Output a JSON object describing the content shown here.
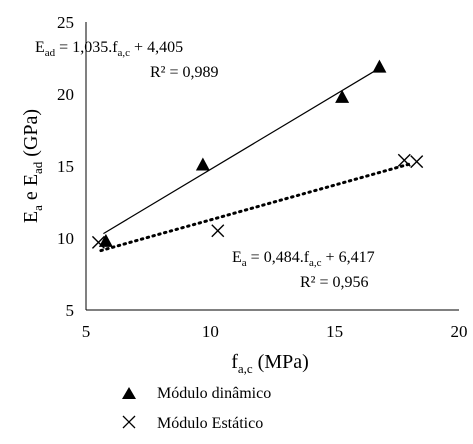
{
  "chart_data": {
    "type": "scatter",
    "xlabel": {
      "base": "f",
      "sub": "a,c",
      "rest": " (MPa)"
    },
    "ylabel": {
      "p1": "E",
      "s1": "a",
      "mid": " e E",
      "s2": "ad",
      "rest": " (GPa)"
    },
    "xlim": [
      5,
      20
    ],
    "ylim": [
      5,
      25
    ],
    "xticks": [
      "5",
      "10",
      "15",
      "20"
    ],
    "yticks": [
      "5",
      "10",
      "15",
      "20",
      "25"
    ],
    "grid": false,
    "series": [
      {
        "name": "Módulo dinâmico",
        "marker": "triangle",
        "points": [
          [
            5.8,
            9.8
          ],
          [
            9.7,
            15.1
          ],
          [
            15.3,
            19.8
          ],
          [
            16.8,
            21.9
          ]
        ],
        "trendline": {
          "slope": 1.035,
          "intercept": 4.405,
          "style": "solid",
          "x_range": [
            5.7,
            16.9
          ]
        }
      },
      {
        "name": "Módulo Estático",
        "marker": "x",
        "points": [
          [
            5.5,
            9.7
          ],
          [
            10.3,
            10.5
          ],
          [
            17.8,
            15.4
          ],
          [
            18.3,
            15.3
          ]
        ],
        "trendline": {
          "slope": 0.484,
          "intercept": 6.417,
          "style": "dotted",
          "x_range": [
            5.6,
            18.1
          ]
        }
      }
    ],
    "annotations": {
      "dyn_eq": {
        "pre": "E",
        "sub1": "ad",
        "mid": " = 1,035.f",
        "sub2": "a,c",
        "post": " + 4,405"
      },
      "dyn_r2": "R² = 0,989",
      "sta_eq": {
        "pre": "E",
        "sub1": "a",
        "mid": " = 0,484.f",
        "sub2": "a,c",
        "post": " + 6,417"
      },
      "sta_r2": "R² = 0,956"
    },
    "legend": {
      "position": "bottom",
      "items": [
        "Módulo dinâmico",
        "Módulo Estático"
      ]
    }
  }
}
